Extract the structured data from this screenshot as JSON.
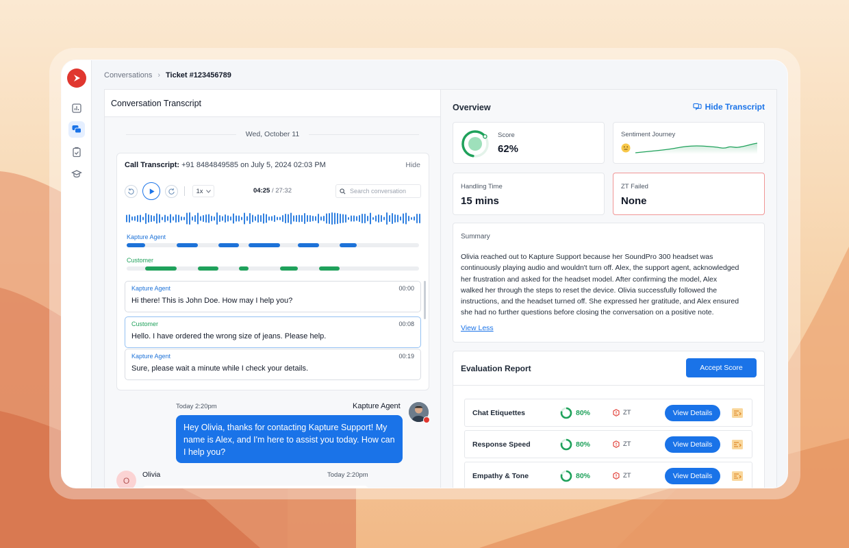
{
  "breadcrumb": {
    "parent": "Conversations",
    "current": "Ticket #123456789"
  },
  "sidebar": {
    "items": [
      "analytics",
      "conversations",
      "tasks",
      "training"
    ]
  },
  "transcript": {
    "header": "Conversation Transcript",
    "date": "Wed, October 11",
    "call_label": "Call Transcript:",
    "call_info": " +91 8484849585 on July 5, 2024 02:03 PM",
    "hide": "Hide",
    "speed": "1x",
    "time_current": "04:25",
    "time_total": " / 27:32",
    "search_placeholder": "Search conversation",
    "agent_label": "Kapture Agent",
    "customer_label": "Customer",
    "messages": [
      {
        "speaker": "Kapture Agent",
        "time": "00:00",
        "text": "Hi there! This is John Doe. How may I help you?"
      },
      {
        "speaker": "Customer",
        "time": "00:08",
        "text": "Hello. I have ordered the wrong size of jeans. Please help."
      },
      {
        "speaker": "Kapture Agent",
        "time": "00:19",
        "text": "Sure, please wait a minute while I check your details."
      }
    ]
  },
  "chat": {
    "agent_time": "Today 2:20pm",
    "agent_name": "Kapture Agent",
    "agent_message_line1": "Hey Olivia, thanks for contacting Kapture Support! My",
    "agent_message_line2": "name is Alex, and I'm here to assist you today. How can",
    "agent_message_line3": "I help you?",
    "customer_initial": "O",
    "customer_name": "Olivia",
    "customer_time": "Today 2:20pm"
  },
  "overview": {
    "title": "Overview",
    "hide_transcript": "Hide Transcript",
    "score_label": "Score",
    "score_value": "62%",
    "score_fraction": 0.62,
    "sentiment_label": "Sentiment Journey",
    "handling_label": "Handling Time",
    "handling_value": "15 mins",
    "zt_label": "ZT Failed",
    "zt_value": "None",
    "summary_label": "Summary",
    "summary_lines": [
      "Olivia reached out to Kapture Support because her SoundPro 300 headset was",
      "continuously playing audio and wouldn't turn off. Alex, the support agent, acknowledged",
      "her frustration and asked for the headset model. After confirming the model, Alex",
      "walked her through the steps to reset the device. Olivia successfully followed the",
      "instructions, and the headset turned off. She expressed her gratitude, and Alex ensured",
      "she had no further questions before closing the conversation on a positive note."
    ],
    "view_less": "View Less"
  },
  "evaluation": {
    "title": "Evaluation Report",
    "accept": "Accept Score",
    "rows": [
      {
        "name": "Chat Etiquettes",
        "pct": "80%",
        "zt": "ZT",
        "btn": "View Details"
      },
      {
        "name": "Response Speed",
        "pct": "80%",
        "zt": "ZT",
        "btn": "View Details"
      },
      {
        "name": "Empathy & Tone",
        "pct": "80%",
        "zt": "ZT",
        "btn": "View Details"
      }
    ]
  },
  "colors": {
    "accent": "#1a73e8",
    "agent": "#1d72d8",
    "customer": "#1fa15b",
    "brand": "#e0372f"
  }
}
